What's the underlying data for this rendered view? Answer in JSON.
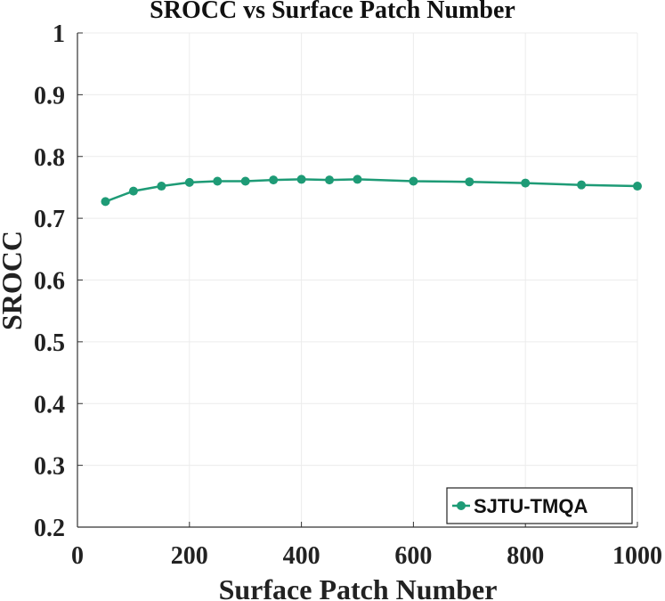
{
  "chart_data": {
    "type": "line",
    "title": "SROCC vs Surface Patch Number",
    "xlabel": "Surface Patch Number",
    "ylabel": "SROCC",
    "xlim": [
      0,
      1000
    ],
    "ylim": [
      0.2,
      1
    ],
    "xticks": [
      "0",
      "200",
      "400",
      "600",
      "800",
      "1000"
    ],
    "yticks": [
      "0.2",
      "0.3",
      "0.4",
      "0.5",
      "0.6",
      "0.7",
      "0.8",
      "0.9",
      "1"
    ],
    "grid": true,
    "legend_position": "bottom-right",
    "series": [
      {
        "name": "SJTU-TMQA",
        "color": "#1e9b76",
        "marker": "circle",
        "x": [
          50,
          100,
          150,
          200,
          250,
          300,
          350,
          400,
          450,
          500,
          600,
          700,
          800,
          900,
          1000
        ],
        "y": [
          0.727,
          0.744,
          0.752,
          0.758,
          0.76,
          0.76,
          0.762,
          0.763,
          0.762,
          0.763,
          0.76,
          0.759,
          0.757,
          0.754,
          0.752
        ]
      }
    ]
  }
}
